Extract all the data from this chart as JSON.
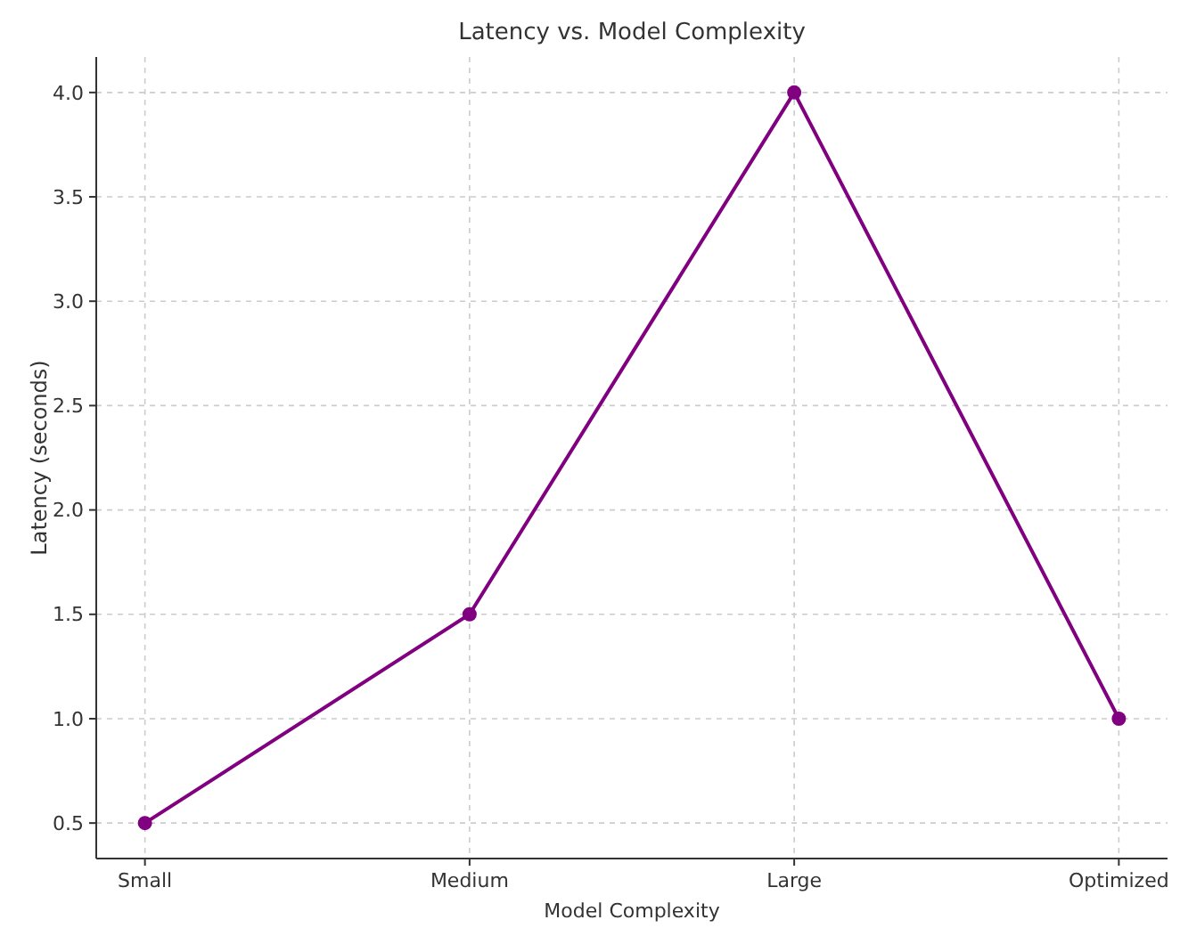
{
  "chart_data": {
    "type": "line",
    "title": "Latency vs. Model Complexity",
    "xlabel": "Model Complexity",
    "ylabel": "Latency (seconds)",
    "categories": [
      "Small",
      "Medium",
      "Large",
      "Optimized"
    ],
    "series": [
      {
        "color": "#800080",
        "values": [
          0.5,
          1.5,
          4.0,
          1.0
        ]
      }
    ],
    "ylim": [
      0.33,
      4.17
    ],
    "yticks": [
      {
        "value": 0.5,
        "label": "0.5"
      },
      {
        "value": 1.0,
        "label": "1.0"
      },
      {
        "value": 1.5,
        "label": "1.5"
      },
      {
        "value": 2.0,
        "label": "2.0"
      },
      {
        "value": 2.5,
        "label": "2.5"
      },
      {
        "value": 3.0,
        "label": "3.0"
      },
      {
        "value": 3.5,
        "label": "3.5"
      },
      {
        "value": 4.0,
        "label": "4.0"
      }
    ],
    "grid": true,
    "marker": "circle",
    "line_style": "solid"
  }
}
